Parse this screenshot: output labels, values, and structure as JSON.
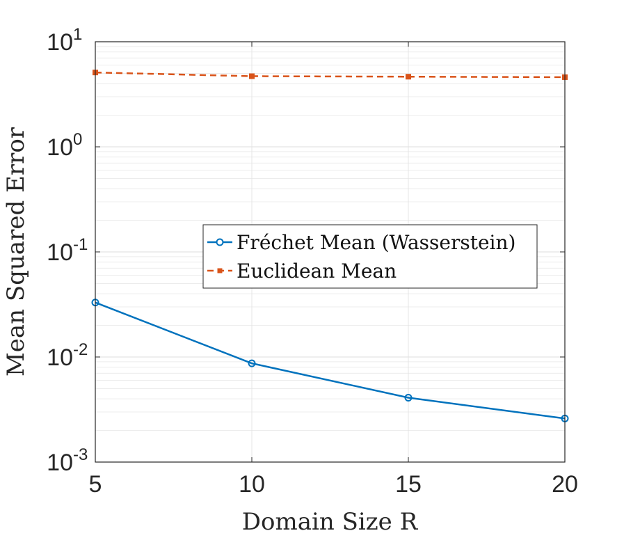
{
  "chart_data": {
    "type": "line",
    "title": "",
    "xlabel": "Domain Size R",
    "ylabel": "Mean Squared Error",
    "x": [
      5,
      10,
      15,
      20
    ],
    "xlim": [
      5,
      20
    ],
    "xticks": [
      "5",
      "10",
      "15",
      "20"
    ],
    "yscale": "log",
    "ylim": [
      0.001,
      10
    ],
    "yticks": [
      {
        "value": 10,
        "base": "10",
        "exp": "1"
      },
      {
        "value": 1,
        "base": "10",
        "exp": "0"
      },
      {
        "value": 0.1,
        "base": "10",
        "exp": "-1"
      },
      {
        "value": 0.01,
        "base": "10",
        "exp": "-2"
      },
      {
        "value": 0.001,
        "base": "10",
        "exp": "-3"
      }
    ],
    "grid": true,
    "legend_position": "center-right",
    "series": [
      {
        "name": "Fréchet Mean (Wasserstein)",
        "values": [
          0.033,
          0.0087,
          0.0041,
          0.0026
        ],
        "color": "#0072BD",
        "line_style": "solid",
        "marker": "circle"
      },
      {
        "name": "Euclidean Mean",
        "values": [
          5.1,
          4.7,
          4.65,
          4.6
        ],
        "color": "#D95319",
        "line_style": "dashed",
        "marker": "square"
      }
    ]
  }
}
